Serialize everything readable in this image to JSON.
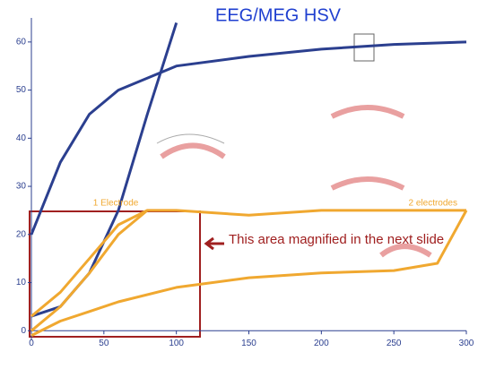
{
  "chart_data": {
    "type": "line",
    "title": "EEG/MEG HSV",
    "annotations": [
      "This area magnified in the next slide"
    ],
    "series": [
      {
        "color": "#2b3f8f",
        "x": [
          0,
          20,
          40,
          60,
          100,
          150,
          200,
          250,
          300
        ],
        "values": [
          20,
          35,
          45,
          50,
          55,
          57,
          58.5,
          59.5,
          60
        ]
      },
      {
        "color": "#2b3f8f",
        "x": [
          0,
          20,
          40,
          60,
          80,
          100
        ],
        "values": [
          3,
          5,
          12,
          25,
          45,
          64
        ]
      },
      {
        "name": "2 electrodes",
        "color": "#f0a830",
        "x": [
          0,
          20,
          40,
          60,
          80,
          100,
          150,
          200,
          300
        ],
        "values": [
          0,
          5,
          12,
          20,
          25,
          25,
          24,
          25,
          25
        ]
      },
      {
        "color": "#f0a830",
        "x": [
          0,
          20,
          40,
          60,
          100,
          150,
          200,
          250,
          280,
          300
        ],
        "values": [
          -1,
          2,
          4,
          6,
          9,
          11,
          12,
          12.5,
          14,
          25
        ]
      },
      {
        "name": "1 Electrode",
        "color": "#f0a830",
        "x": [
          0,
          20,
          40,
          60,
          80
        ],
        "values": [
          3,
          8,
          15,
          22,
          25
        ]
      }
    ],
    "xlim": [
      0,
      300
    ],
    "xticks": [
      0,
      50,
      100,
      150,
      200,
      250,
      300
    ],
    "ylim": [
      -2,
      65
    ],
    "yticks": [
      0,
      10,
      20,
      30,
      40,
      50,
      60
    ]
  }
}
